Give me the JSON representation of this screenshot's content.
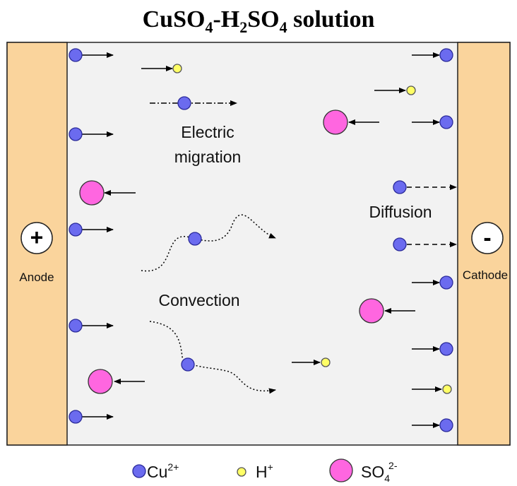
{
  "title": {
    "parts": [
      "CuSO",
      "4",
      "-H",
      "2",
      "SO",
      "4",
      " solution"
    ]
  },
  "anode": {
    "sign": "+",
    "label": "Anode"
  },
  "cathode": {
    "sign": "-",
    "label": "Cathode"
  },
  "labels": {
    "migration": [
      "Electric",
      "migration"
    ],
    "diffusion": "Diffusion",
    "convection": "Convection"
  },
  "legend": {
    "cu": [
      "Cu",
      "2+"
    ],
    "h": [
      "H",
      "+"
    ],
    "so4": [
      "SO",
      "4",
      "2-"
    ]
  }
}
